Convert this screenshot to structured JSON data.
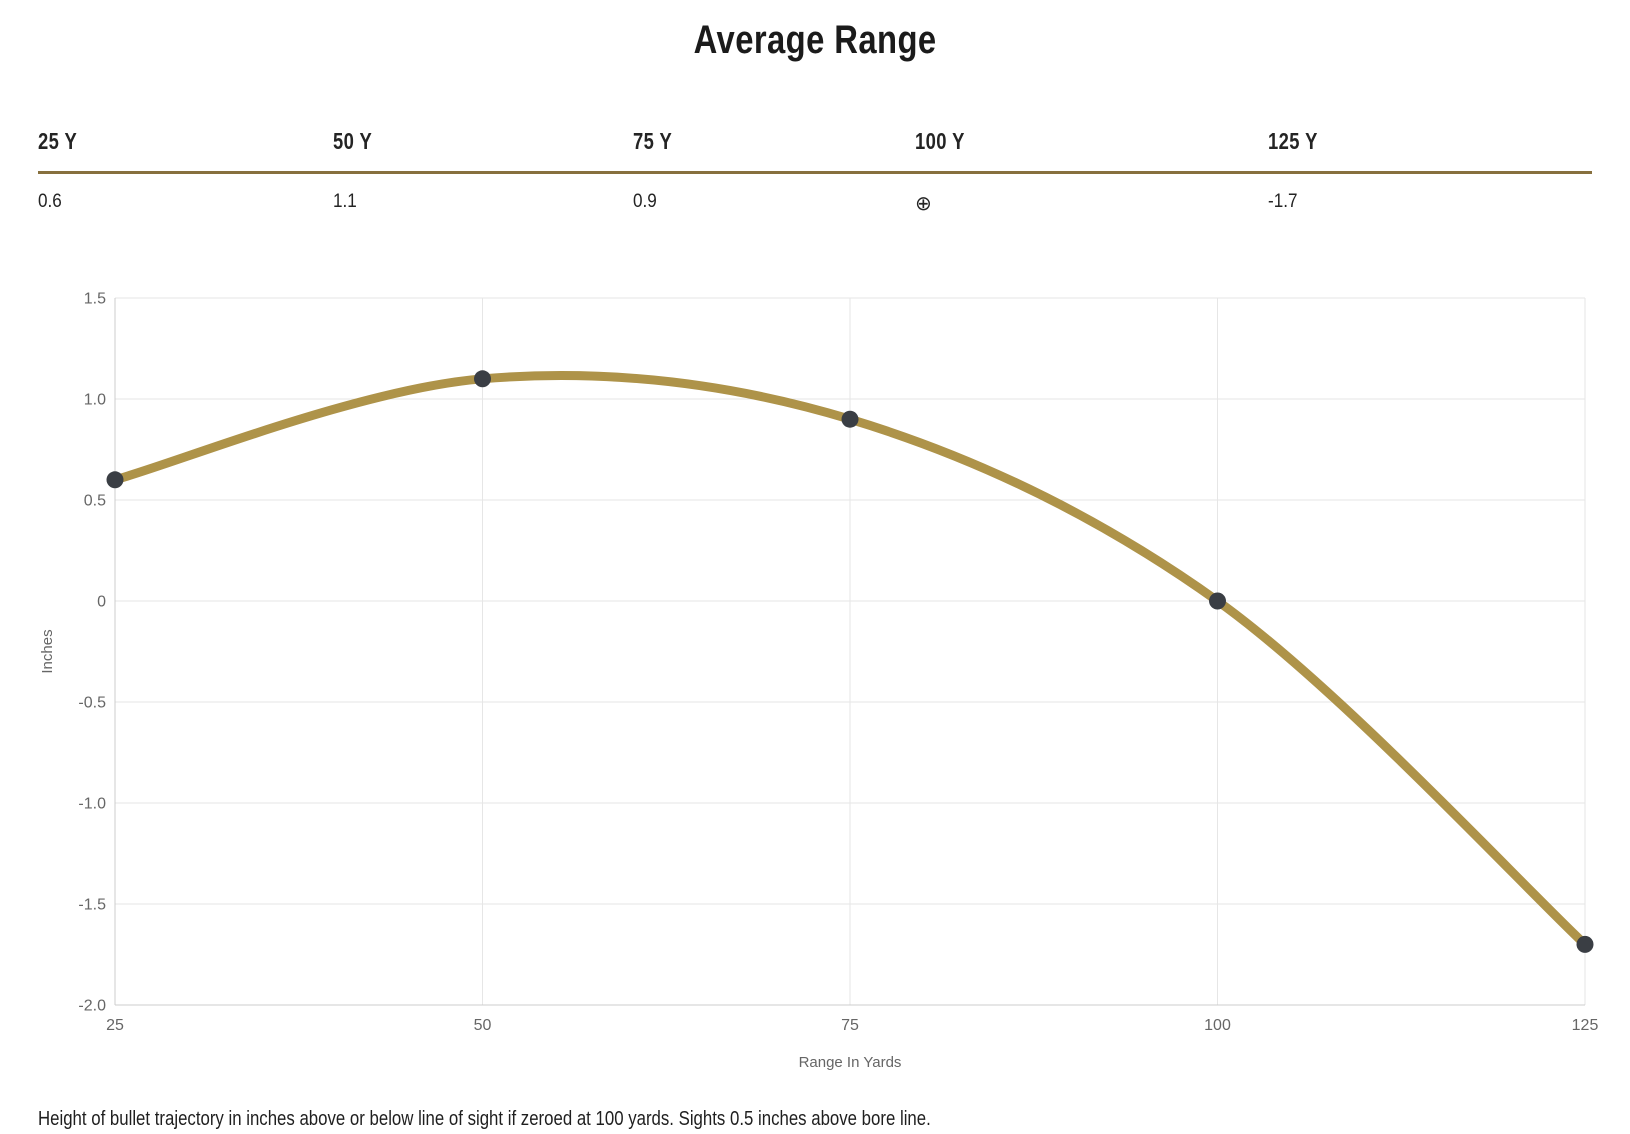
{
  "title": "Average Range",
  "range_table": {
    "columns": [
      {
        "label": "25 Y",
        "value": "0.6"
      },
      {
        "label": "50 Y",
        "value": "1.1"
      },
      {
        "label": "75 Y",
        "value": "0.9"
      },
      {
        "label": "100 Y",
        "value": "⊕"
      },
      {
        "label": "125 Y",
        "value": "-1.7"
      }
    ]
  },
  "chart_data": {
    "type": "line",
    "title": "Average Range",
    "x": [
      25,
      50,
      75,
      100,
      125
    ],
    "series": [
      {
        "name": "Bullet trajectory height",
        "values": [
          0.6,
          1.1,
          0.9,
          0,
          -1.7
        ]
      }
    ],
    "xlabel": "Range In Yards",
    "ylabel": "Inches",
    "xlim": [
      25,
      125
    ],
    "ylim": [
      -2.0,
      1.5
    ],
    "x_ticks": [
      25,
      50,
      75,
      100,
      125
    ],
    "x_tick_labels": [
      "25",
      "50",
      "75",
      "100",
      "125"
    ],
    "y_ticks": [
      1.5,
      1.0,
      0.5,
      0,
      -0.5,
      -1.0,
      -1.5,
      -2.0
    ],
    "y_tick_labels": [
      "1.5",
      "1.0",
      "0.5",
      "0",
      "-0.5",
      "-1.0",
      "-1.5",
      "-2.0"
    ],
    "grid": true,
    "legend_position": "none"
  },
  "footnote": "Height of bullet trajectory in inches above or below line of sight if zeroed at 100 yards. Sights 0.5 inches above bore line.",
  "colors": {
    "line": "#AE9349",
    "point": "#3A3E44",
    "table_rule": "#87703E",
    "grid": "#E6E6E6",
    "axis": "#CCCCCC",
    "tick_text": "#666666",
    "heading_text": "#1B1B1B"
  }
}
